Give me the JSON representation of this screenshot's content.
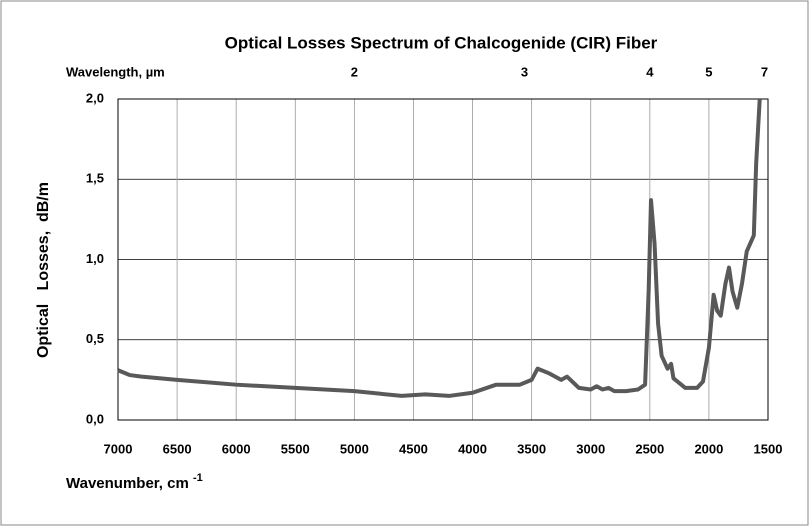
{
  "chart_data": {
    "type": "line",
    "title": "Optical Losses Spectrum of Chalcogenide (CIR) Fiber",
    "xlabel": "Wavenumber, cm",
    "xlabel_exponent": "-1",
    "ylabel": "Optical   Losses,  dB/m",
    "x2label": "Wavelength, µm",
    "xlim": [
      7000,
      1500
    ],
    "ylim": [
      0,
      2
    ],
    "xticks": [
      7000,
      6500,
      6000,
      5500,
      5000,
      4500,
      4000,
      3500,
      3000,
      2500,
      2000,
      1500
    ],
    "yticks": [
      {
        "value": 0,
        "label": "0,0"
      },
      {
        "value": 0.5,
        "label": "0,5"
      },
      {
        "value": 1,
        "label": "1,0"
      },
      {
        "value": 1.5,
        "label": "1,5"
      },
      {
        "value": 2,
        "label": "2,0"
      }
    ],
    "x2ticks": [
      {
        "value": 5000,
        "label": "2"
      },
      {
        "value": 3560,
        "label": "3"
      },
      {
        "value": 2500,
        "label": "4"
      },
      {
        "value": 2000,
        "label": "5"
      },
      {
        "value": 1530,
        "label": "7"
      }
    ],
    "grid": true,
    "series": [
      {
        "color": "#595959",
        "x": [
          7000,
          6900,
          6800,
          6500,
          6000,
          5500,
          5000,
          4600,
          4400,
          4200,
          4000,
          3800,
          3600,
          3500,
          3450,
          3350,
          3250,
          3200,
          3100,
          3000,
          2950,
          2900,
          2850,
          2800,
          2700,
          2600,
          2540,
          2510,
          2490,
          2460,
          2430,
          2400,
          2350,
          2320,
          2300,
          2200,
          2100,
          2050,
          2000,
          1960,
          1930,
          1900,
          1860,
          1830,
          1800,
          1760,
          1720,
          1680,
          1620,
          1600,
          1570
        ],
        "values": [
          0.31,
          0.28,
          0.27,
          0.25,
          0.22,
          0.2,
          0.18,
          0.15,
          0.16,
          0.15,
          0.17,
          0.22,
          0.22,
          0.25,
          0.32,
          0.29,
          0.25,
          0.27,
          0.2,
          0.19,
          0.21,
          0.19,
          0.2,
          0.18,
          0.18,
          0.19,
          0.22,
          0.8,
          1.37,
          1.1,
          0.6,
          0.4,
          0.32,
          0.35,
          0.26,
          0.2,
          0.2,
          0.24,
          0.45,
          0.78,
          0.68,
          0.65,
          0.85,
          0.95,
          0.8,
          0.7,
          0.85,
          1.05,
          1.15,
          1.6,
          2.0
        ]
      }
    ]
  }
}
